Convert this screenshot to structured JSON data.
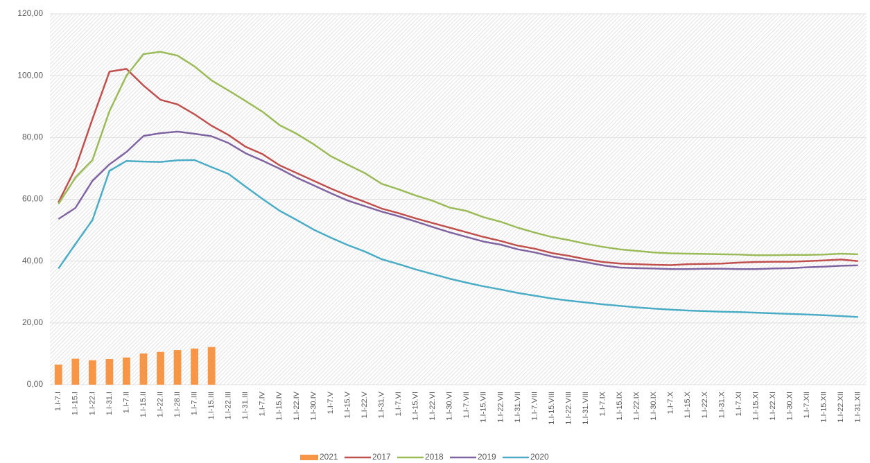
{
  "chart_data": {
    "type": "combo",
    "categories": [
      "1.I-7.I",
      "1.I-15.I",
      "1.I-22.I",
      "1.I-31.I",
      "1.I-7.II",
      "1.I-15.II",
      "1.I-22.II",
      "1.I-28.II",
      "1.I-7.III",
      "1.I-15.III",
      "1.I-22.III",
      "1.I-31.III",
      "1.I-7.IV",
      "1.I-15.IV",
      "1.I-22.IV",
      "1.I-30.IV",
      "1.I-7.V",
      "1.I-15.V",
      "1.I-22.V",
      "1.I-31.V",
      "1.I-7.VI",
      "1.I-15.VI",
      "1.I-22.VI",
      "1.I-30.VI",
      "1.I-7.VII",
      "1.I-15.VII",
      "1.I-22.VII",
      "1.I-31.VII",
      "1.I-7.VIII",
      "1.I-15.VIII",
      "1.I-22.VIII",
      "1.I-31.VIII",
      "1.I-7.IX",
      "1.I-15.IX",
      "1.I-22.IX",
      "1.I-30.IX",
      "1.I-7.X",
      "1.I-15.X",
      "1.I-22.X",
      "1.I-31.X",
      "1.I-7.XI",
      "1.I-15.XI",
      "1.I-22.XI",
      "1.I-30.XI",
      "1.I-7.XII",
      "1.I-15.XII",
      "1.I-22.XII",
      "1.I-31.XII"
    ],
    "series": [
      {
        "name": "2021",
        "type": "bar",
        "color": "#f79646",
        "values": [
          6.5,
          8.4,
          7.9,
          8.3,
          8.8,
          10.1,
          10.6,
          11.2,
          11.7,
          12.2,
          null,
          null,
          null,
          null,
          null,
          null,
          null,
          null,
          null,
          null,
          null,
          null,
          null,
          null,
          null,
          null,
          null,
          null,
          null,
          null,
          null,
          null,
          null,
          null,
          null,
          null,
          null,
          null,
          null,
          null,
          null,
          null,
          null,
          null,
          null,
          null,
          null,
          null
        ]
      },
      {
        "name": "2017",
        "type": "line",
        "color": "#c0504d",
        "values": [
          59,
          70,
          86,
          101.3,
          102.2,
          96.8,
          92.2,
          90.7,
          87.5,
          83.8,
          80.8,
          77,
          74.6,
          71,
          68.5,
          66,
          63.5,
          61.2,
          59.2,
          57,
          55.5,
          53.8,
          52.3,
          50.8,
          49.3,
          47.8,
          46.5,
          45,
          44,
          42.6,
          41.7,
          40.6,
          39.7,
          39.2,
          39,
          38.8,
          38.7,
          39,
          39.1,
          39.2,
          39.5,
          39.7,
          39.8,
          39.8,
          40,
          40.2,
          40.5,
          40
        ]
      },
      {
        "name": "2018",
        "type": "line",
        "color": "#9bbb59",
        "values": [
          58.5,
          67,
          72.7,
          88.5,
          100,
          107,
          107.7,
          106.5,
          103,
          98.5,
          95.2,
          91.8,
          88.3,
          84,
          81.2,
          77.8,
          74,
          71.2,
          68.5,
          65,
          63.2,
          61.2,
          59.5,
          57.3,
          56.2,
          54.2,
          52.7,
          50.8,
          49.2,
          47.8,
          46.8,
          45.6,
          44.6,
          43.8,
          43.3,
          42.8,
          42.5,
          42.4,
          42.3,
          42.2,
          42.1,
          41.9,
          41.9,
          42,
          42,
          42.1,
          42.4,
          42.2
        ]
      },
      {
        "name": "2019",
        "type": "line",
        "color": "#8064a2",
        "values": [
          53.6,
          57.2,
          66,
          71.3,
          75.3,
          80.5,
          81.4,
          81.9,
          81.2,
          80.4,
          78.2,
          74.9,
          72.5,
          69.9,
          67,
          64.5,
          62,
          59.6,
          57.8,
          56,
          54.5,
          52.8,
          51,
          49.3,
          47.8,
          46.3,
          45.3,
          43.8,
          42.8,
          41.5,
          40.5,
          39.6,
          38.6,
          37.9,
          37.7,
          37.6,
          37.4,
          37.4,
          37.5,
          37.5,
          37.4,
          37.4,
          37.6,
          37.7,
          38,
          38.2,
          38.5,
          38.6
        ]
      },
      {
        "name": "2020",
        "type": "line",
        "color": "#4bacc6",
        "values": [
          37.6,
          45.5,
          53.3,
          69.2,
          72.4,
          72.2,
          72.1,
          72.6,
          72.7,
          70.4,
          68.2,
          64.1,
          60.1,
          56.3,
          53.3,
          50.2,
          47.6,
          45.2,
          43.1,
          40.6,
          39,
          37.3,
          35.8,
          34.3,
          33,
          31.8,
          30.8,
          29.7,
          28.8,
          27.9,
          27.2,
          26.6,
          26,
          25.5,
          25,
          24.6,
          24.3,
          24,
          23.8,
          23.6,
          23.5,
          23.3,
          23.1,
          22.9,
          22.7,
          22.5,
          22.2,
          21.9
        ]
      }
    ],
    "ylim": [
      0,
      120
    ],
    "yticks": [
      {
        "value": 0,
        "label": "0,00"
      },
      {
        "value": 20,
        "label": "20,00"
      },
      {
        "value": 40,
        "label": "40,00"
      },
      {
        "value": 60,
        "label": "60,00"
      },
      {
        "value": 80,
        "label": "80,00"
      },
      {
        "value": 100,
        "label": "100,00"
      },
      {
        "value": 120,
        "label": "120,00"
      }
    ],
    "grid": true,
    "legend": "bottom"
  }
}
